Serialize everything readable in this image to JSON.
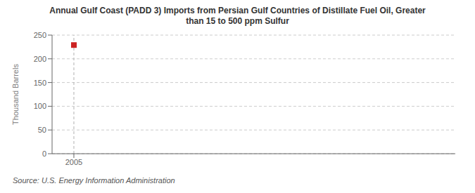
{
  "chart_data": {
    "type": "scatter",
    "title": "Annual Gulf Coast (PADD 3) Imports from Persian Gulf Countries of Distillate Fuel Oil, Greater\nthan 15 to 500 ppm Sulfur",
    "ylabel": "Thousand Barrels",
    "annotation": "Source: U.S. Energy Information Administration",
    "x": [
      2005
    ],
    "values": [
      229
    ],
    "color": "#cc2222",
    "marker": "square",
    "vlines": [
      2005
    ],
    "xlim": [
      2004.6,
      2012.0
    ],
    "xticks": [
      2005
    ],
    "ylim": [
      0,
      250
    ],
    "yticks": [
      0,
      50,
      100,
      150,
      200,
      250
    ],
    "grid": true
  }
}
